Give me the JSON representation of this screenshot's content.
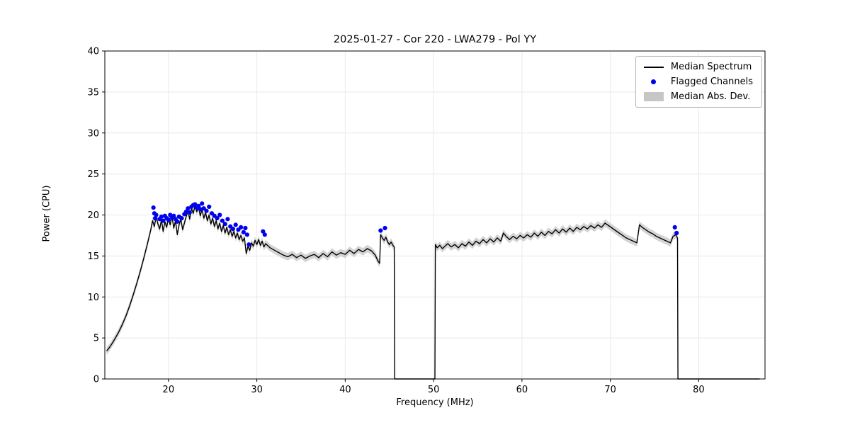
{
  "legend": {
    "items": [
      {
        "label": "Median Spectrum",
        "type": "line",
        "color": "#000000"
      },
      {
        "label": "Flagged Channels",
        "type": "dot",
        "color": "#0000ee"
      },
      {
        "label": "Median Abs. Dev.",
        "type": "band",
        "color": "#c6c6c6"
      }
    ]
  },
  "chart_data": {
    "type": "line",
    "title": "2025-01-27 - Cor 220 - LWA279 - Pol YY",
    "xlabel": "Frequency (MHz)",
    "ylabel": "Power (CPU)",
    "xlim": [
      12.8,
      87.5
    ],
    "ylim": [
      0,
      40
    ],
    "xticks": [
      20,
      30,
      40,
      50,
      60,
      70,
      80
    ],
    "yticks": [
      0,
      5,
      10,
      15,
      20,
      25,
      30,
      35,
      40
    ],
    "grid": true,
    "legend_position": "upper right",
    "mad_halfwidth": 0.45,
    "gaps_mhz": [
      [
        45.6,
        50.2
      ],
      [
        77.65,
        86.9
      ]
    ],
    "series": [
      {
        "name": "Median Spectrum",
        "type": "line",
        "color": "#000000",
        "x": [
          13.0,
          13.3,
          13.6,
          14.0,
          14.4,
          14.8,
          15.2,
          15.6,
          16.0,
          16.4,
          16.8,
          17.2,
          17.6,
          18.0,
          18.2,
          18.4,
          18.6,
          18.8,
          19.0,
          19.2,
          19.4,
          19.6,
          19.8,
          20.0,
          20.2,
          20.4,
          20.6,
          20.8,
          21.0,
          21.2,
          21.4,
          21.6,
          21.8,
          22.0,
          22.2,
          22.4,
          22.6,
          22.8,
          23.0,
          23.2,
          23.4,
          23.6,
          23.8,
          24.0,
          24.2,
          24.4,
          24.6,
          24.8,
          25.0,
          25.2,
          25.4,
          25.6,
          25.8,
          26.0,
          26.2,
          26.4,
          26.6,
          26.8,
          27.0,
          27.2,
          27.4,
          27.6,
          27.8,
          28.0,
          28.2,
          28.4,
          28.6,
          28.8,
          29.0,
          29.2,
          29.4,
          29.6,
          29.8,
          30.0,
          30.2,
          30.4,
          30.6,
          30.8,
          31.0,
          31.5,
          32.0,
          32.5,
          33.0,
          33.5,
          34.0,
          34.5,
          35.0,
          35.5,
          36.0,
          36.5,
          37.0,
          37.5,
          38.0,
          38.5,
          39.0,
          39.5,
          40.0,
          40.5,
          41.0,
          41.5,
          42.0,
          42.5,
          43.0,
          43.4,
          43.7,
          43.9,
          44.0,
          44.2,
          44.4,
          44.6,
          44.8,
          45.0,
          45.2,
          45.4,
          45.55,
          45.6,
          50.15,
          50.2,
          50.4,
          50.7,
          51.0,
          51.3,
          51.6,
          52.0,
          52.4,
          52.8,
          53.2,
          53.6,
          54.0,
          54.4,
          54.8,
          55.2,
          55.6,
          56.0,
          56.4,
          56.8,
          57.2,
          57.6,
          57.9,
          58.2,
          58.6,
          59.0,
          59.4,
          59.8,
          60.2,
          60.6,
          61.0,
          61.4,
          61.8,
          62.2,
          62.6,
          63.0,
          63.4,
          63.8,
          64.2,
          64.6,
          65.0,
          65.4,
          65.8,
          66.2,
          66.6,
          67.0,
          67.4,
          67.8,
          68.2,
          68.6,
          69.0,
          69.4,
          69.8,
          70.2,
          70.6,
          71.0,
          71.4,
          71.8,
          72.2,
          72.6,
          73.0,
          73.3,
          73.6,
          74.0,
          74.4,
          74.8,
          75.2,
          75.6,
          76.0,
          76.4,
          76.8,
          77.1,
          77.4,
          77.6,
          77.65,
          86.9
        ],
        "y": [
          3.4,
          3.8,
          4.3,
          5.0,
          5.8,
          6.7,
          7.7,
          8.9,
          10.2,
          11.6,
          13.1,
          14.7,
          16.4,
          18.2,
          19.3,
          18.6,
          19.8,
          18.9,
          18.3,
          19.4,
          18.0,
          19.2,
          18.5,
          19.6,
          18.8,
          19.9,
          18.4,
          19.3,
          17.6,
          18.8,
          19.5,
          18.2,
          19.0,
          19.8,
          20.5,
          19.5,
          20.8,
          20.2,
          21.1,
          20.4,
          21.0,
          19.9,
          20.7,
          19.6,
          20.3,
          19.3,
          20.0,
          18.9,
          19.6,
          18.6,
          19.3,
          18.3,
          19.0,
          18.0,
          18.7,
          17.8,
          18.5,
          17.6,
          18.2,
          17.4,
          18.0,
          17.2,
          17.8,
          17.0,
          17.5,
          16.8,
          17.2,
          15.3,
          16.2,
          15.7,
          16.6,
          16.2,
          16.9,
          16.4,
          17.0,
          16.3,
          16.8,
          16.1,
          16.5,
          16.0,
          15.7,
          15.4,
          15.1,
          14.9,
          15.2,
          14.8,
          15.1,
          14.7,
          15.0,
          15.2,
          14.8,
          15.3,
          14.9,
          15.5,
          15.1,
          15.4,
          15.2,
          15.7,
          15.3,
          15.8,
          15.5,
          15.9,
          15.6,
          15.1,
          14.4,
          14.1,
          17.6,
          17.2,
          16.9,
          17.3,
          16.7,
          16.4,
          16.7,
          16.3,
          16.1,
          0,
          0,
          16.4,
          16.0,
          16.3,
          15.9,
          16.2,
          16.5,
          16.1,
          16.4,
          16.0,
          16.5,
          16.2,
          16.7,
          16.3,
          16.8,
          16.5,
          17.0,
          16.6,
          17.1,
          16.7,
          17.2,
          16.8,
          17.8,
          17.4,
          17.0,
          17.4,
          17.1,
          17.5,
          17.2,
          17.6,
          17.3,
          17.8,
          17.4,
          17.9,
          17.5,
          18.0,
          17.7,
          18.2,
          17.8,
          18.3,
          17.9,
          18.4,
          18.0,
          18.5,
          18.2,
          18.6,
          18.3,
          18.7,
          18.4,
          18.8,
          18.5,
          19.0,
          18.7,
          18.4,
          18.1,
          17.8,
          17.5,
          17.2,
          17.0,
          16.8,
          16.6,
          18.8,
          18.5,
          18.2,
          17.9,
          17.7,
          17.4,
          17.2,
          17.0,
          16.8,
          16.6,
          17.4,
          17.6,
          17.2,
          0,
          0
        ]
      },
      {
        "name": "Flagged Channels",
        "type": "scatter",
        "color": "#0000ee",
        "x": [
          18.3,
          18.4,
          18.5,
          18.6,
          19.0,
          19.2,
          19.4,
          19.6,
          19.8,
          20.0,
          20.2,
          20.4,
          20.6,
          20.8,
          21.0,
          21.2,
          21.5,
          21.8,
          22.0,
          22.2,
          22.4,
          22.6,
          22.8,
          23.0,
          23.2,
          23.4,
          23.6,
          23.8,
          24.0,
          24.3,
          24.6,
          24.9,
          25.2,
          25.5,
          25.8,
          26.1,
          26.4,
          26.7,
          27.0,
          27.3,
          27.6,
          27.9,
          28.2,
          28.5,
          28.7,
          28.9,
          29.1,
          30.7,
          30.9,
          44.0,
          44.5,
          77.3,
          77.5
        ],
        "y": [
          20.9,
          20.2,
          19.6,
          20.0,
          19.5,
          19.8,
          19.3,
          19.9,
          19.6,
          19.4,
          20.0,
          19.7,
          19.9,
          19.5,
          19.2,
          19.8,
          19.6,
          20.1,
          20.4,
          20.8,
          20.3,
          21.0,
          21.2,
          21.3,
          20.9,
          21.1,
          20.7,
          21.4,
          20.8,
          20.5,
          21.0,
          20.2,
          19.9,
          19.6,
          20.0,
          19.3,
          18.9,
          19.5,
          18.6,
          18.3,
          18.8,
          18.2,
          18.5,
          17.9,
          18.4,
          17.6,
          16.4,
          18.0,
          17.6,
          18.1,
          18.4,
          18.5,
          17.8
        ]
      }
    ]
  }
}
